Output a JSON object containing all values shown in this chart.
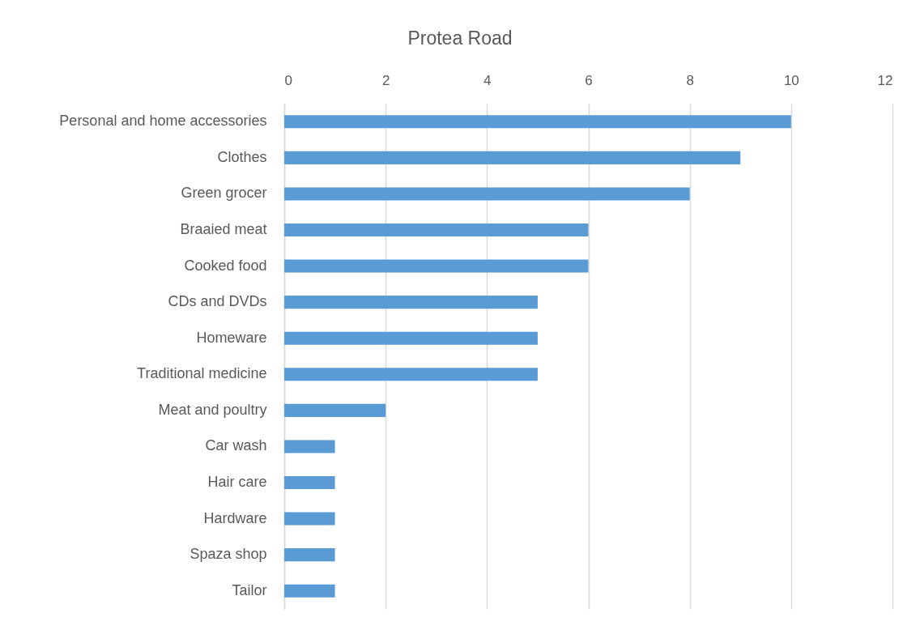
{
  "chart_data": {
    "type": "bar",
    "orientation": "horizontal",
    "title": "Protea Road",
    "categories": [
      "Personal and home accessories",
      "Clothes",
      "Green grocer",
      "Braaied meat",
      "Cooked food",
      "CDs and DVDs",
      "Homeware",
      "Traditional medicine",
      "Meat and poultry",
      "Car wash",
      "Hair care",
      "Hardware",
      "Spaza shop",
      "Tailor"
    ],
    "values": [
      10,
      9,
      8,
      6,
      6,
      5,
      5,
      5,
      2,
      1,
      1,
      1,
      1,
      1
    ],
    "color": "#5b9bd5",
    "xlim": [
      0,
      12
    ],
    "xticks": [
      0,
      2,
      4,
      6,
      8,
      10,
      12
    ],
    "grid": "x"
  }
}
